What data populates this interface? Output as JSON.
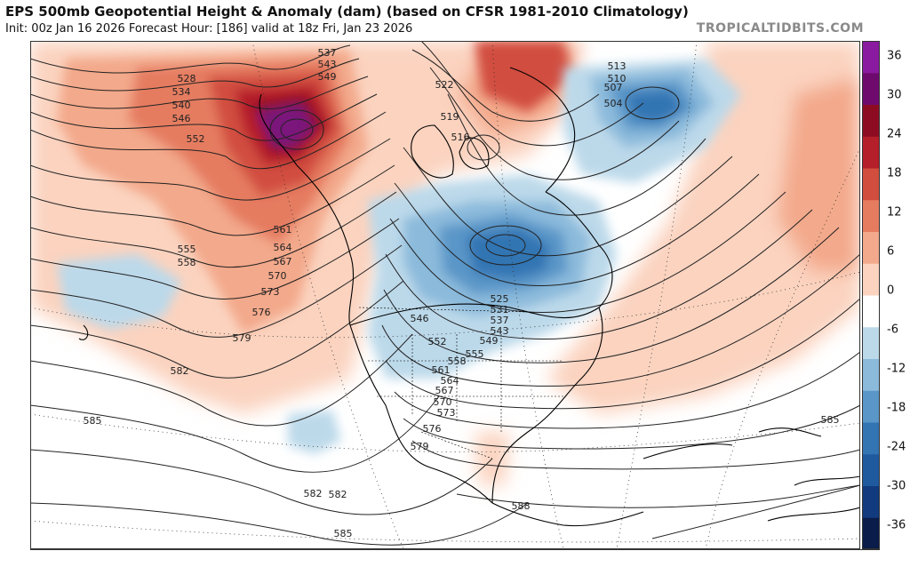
{
  "header": {
    "title": "EPS 500mb Geopotential Height & Anomaly (dam) (based on CFSR 1981-2010 Climatology)",
    "subtitle": "Init: 00z Jan 16 2026   Forecast Hour: [186]   valid at 18z Fri, Jan 23 2026",
    "watermark": "TROPICALTIDBITS.COM"
  },
  "colorbar": {
    "ticks": [
      "36",
      "30",
      "24",
      "18",
      "12",
      "6",
      "0",
      "-6",
      "-12",
      "-18",
      "-24",
      "-30",
      "-36"
    ],
    "colors": [
      "#0a1c4a",
      "#123a7e",
      "#1f5a9e",
      "#3374b3",
      "#5a96c8",
      "#8bbadb",
      "#bcd9ea",
      "#ffffff",
      "#fbd3bf",
      "#f3a98b",
      "#e57c60",
      "#d14e3f",
      "#b51f2a",
      "#8e0c22",
      "#6e0a6e",
      "#8a1aa0"
    ]
  },
  "map": {
    "contour_labels": [
      {
        "text": "528"
      },
      {
        "text": "534"
      },
      {
        "text": "540"
      },
      {
        "text": "546"
      },
      {
        "text": "552"
      },
      {
        "text": "555"
      },
      {
        "text": "558"
      },
      {
        "text": "561"
      },
      {
        "text": "564"
      },
      {
        "text": "567"
      },
      {
        "text": "570"
      },
      {
        "text": "573"
      },
      {
        "text": "576"
      },
      {
        "text": "579"
      },
      {
        "text": "582"
      },
      {
        "text": "585"
      },
      {
        "text": "537"
      },
      {
        "text": "543"
      },
      {
        "text": "549"
      },
      {
        "text": "522"
      },
      {
        "text": "519"
      },
      {
        "text": "516"
      },
      {
        "text": "513"
      },
      {
        "text": "510"
      },
      {
        "text": "507"
      },
      {
        "text": "504"
      },
      {
        "text": "525"
      },
      {
        "text": "531"
      },
      {
        "text": "537"
      },
      {
        "text": "543"
      },
      {
        "text": "549"
      },
      {
        "text": "546"
      },
      {
        "text": "552"
      },
      {
        "text": "555"
      },
      {
        "text": "558"
      },
      {
        "text": "561"
      },
      {
        "text": "564"
      },
      {
        "text": "567"
      },
      {
        "text": "570"
      },
      {
        "text": "573"
      },
      {
        "text": "576"
      },
      {
        "text": "579"
      },
      {
        "text": "582"
      },
      {
        "text": "588"
      },
      {
        "text": "585"
      },
      {
        "text": "585"
      },
      {
        "text": "582"
      }
    ]
  }
}
